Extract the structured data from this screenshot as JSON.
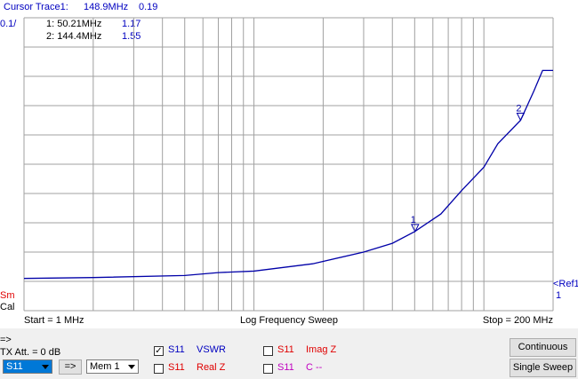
{
  "header": {
    "cursor_label": "Cursor Trace1:",
    "cursor_freq": "148.9MHz",
    "cursor_value": "0.19",
    "scale": "0.1/"
  },
  "readout": [
    {
      "freq": "1: 50.21MHz",
      "value": "1.17"
    },
    {
      "freq": "2: 144.4MHz",
      "value": "1.55"
    }
  ],
  "left_labels": {
    "sm": "Sm",
    "cal": "Cal"
  },
  "ref": {
    "label": "<Ref1",
    "value": "1"
  },
  "chart_data": {
    "type": "line",
    "x_log": true,
    "color": "#0000a8",
    "grid": true,
    "x": [
      1,
      2,
      5,
      7,
      10,
      18,
      30,
      40,
      50,
      65,
      80,
      100,
      115,
      144.4,
      165,
      180,
      200
    ],
    "values": [
      1.01,
      1.013,
      1.02,
      1.03,
      1.035,
      1.06,
      1.1,
      1.13,
      1.17,
      1.23,
      1.31,
      1.39,
      1.47,
      1.55,
      1.65,
      1.72,
      1.72
    ],
    "xlim": [
      1,
      200
    ],
    "ylim": [
      0.9,
      1.9
    ],
    "xticks": [
      1,
      2,
      3,
      4,
      5,
      6,
      7,
      8,
      9,
      10,
      20,
      30,
      40,
      50,
      60,
      70,
      80,
      90,
      100,
      200
    ],
    "yticks": [
      0.9,
      1.0,
      1.1,
      1.2,
      1.3,
      1.4,
      1.5,
      1.6,
      1.7,
      1.8,
      1.9
    ],
    "markers": [
      {
        "label": "1",
        "x": 50.21,
        "y": 1.17
      },
      {
        "label": "2",
        "x": 144.4,
        "y": 1.55
      }
    ]
  },
  "footer": {
    "start": "Start = 1 MHz",
    "mode": "Log Frequency Sweep",
    "stop": "Stop = 200 MHz"
  },
  "controls": {
    "arrow": "=>",
    "tx_att": "TX Att. = 0 dB",
    "trace_select": "S11",
    "apply": "=>",
    "memory_select": "Mem 1",
    "traces": [
      {
        "param": "S11",
        "label": "VSWR",
        "checked": true,
        "color": "#0000c0"
      },
      {
        "param": "S11",
        "label": "Real Z",
        "checked": false,
        "color": "#e00000"
      },
      {
        "param": "S11",
        "label": "Imag Z",
        "checked": false,
        "color": "#e00000"
      },
      {
        "param": "S11",
        "label": "C --",
        "checked": false,
        "color": "#c000c0"
      }
    ],
    "buttons": [
      "Continuous",
      "Single Sweep"
    ]
  }
}
